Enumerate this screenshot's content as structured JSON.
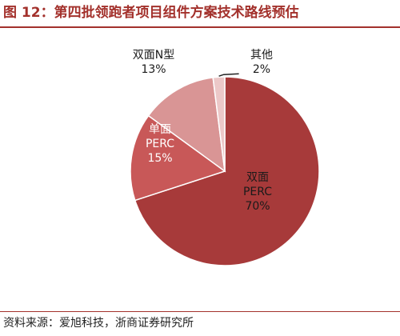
{
  "figure": {
    "title": "图 12：第四批领跑者项目组件方案技术路线预估",
    "source": "资料来源：爱旭科技，浙商证券研究所"
  },
  "colors": {
    "accent": "#a3312c",
    "slice_edge": "#ffffff"
  },
  "chart_data": {
    "type": "pie",
    "title": "",
    "start": "12 o'clock",
    "direction": "clockwise",
    "slices": [
      {
        "label_lines": [
          "双面",
          "PERC"
        ],
        "value": 70,
        "value_text": "70%",
        "color": "#a73a3a",
        "label_color": "#1a1a1a"
      },
      {
        "label_lines": [
          "单面",
          "PERC"
        ],
        "value": 15,
        "value_text": "15%",
        "color": "#c85858",
        "label_color": "#ffffff"
      },
      {
        "label_lines": [
          "双面N型"
        ],
        "value": 13,
        "value_text": "13%",
        "color": "#d99595",
        "label_color": "#1a1a1a"
      },
      {
        "label_lines": [
          "其他"
        ],
        "value": 2,
        "value_text": "2%",
        "color": "#ecc8c8",
        "label_color": "#1a1a1a"
      }
    ]
  }
}
